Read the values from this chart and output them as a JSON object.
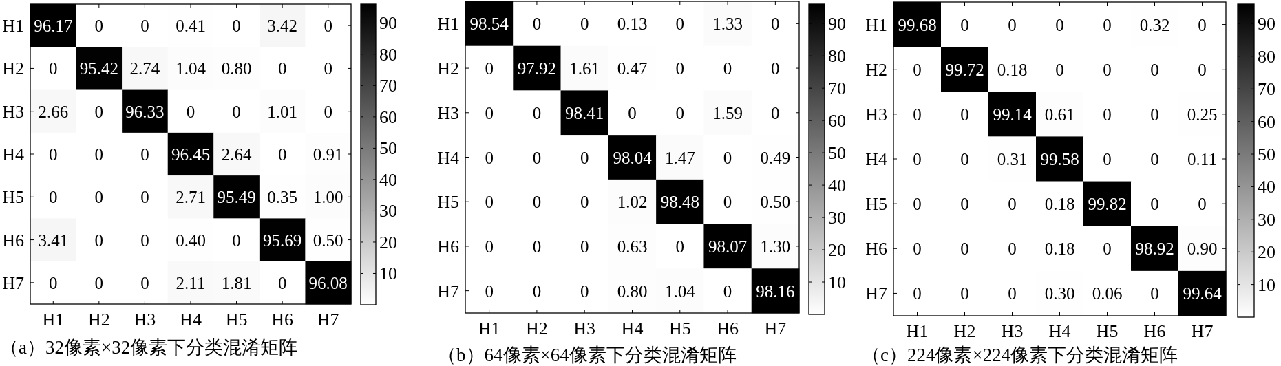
{
  "chart_data": [
    {
      "type": "heatmap",
      "title": "（a）32像素×32像素下分类混淆矩阵",
      "categories": [
        "H1",
        "H2",
        "H3",
        "H4",
        "H5",
        "H6",
        "H7"
      ],
      "y_categories": [
        "H1",
        "H2",
        "H3",
        "H4",
        "H5",
        "H6",
        "H7"
      ],
      "cells": [
        [
          96.17,
          0,
          0,
          0.41,
          0,
          3.42,
          0
        ],
        [
          0,
          95.42,
          2.74,
          1.04,
          0.8,
          0,
          0
        ],
        [
          2.66,
          0,
          96.33,
          0,
          0,
          1.01,
          0
        ],
        [
          0,
          0,
          0,
          96.45,
          2.64,
          0,
          0.91
        ],
        [
          0,
          0,
          0,
          2.71,
          95.49,
          0.35,
          1.0
        ],
        [
          3.41,
          0,
          0,
          0.4,
          0,
          95.69,
          0.5
        ],
        [
          0,
          0,
          0,
          2.11,
          1.81,
          0,
          96.08
        ]
      ],
      "cell_labels": [
        [
          "96.17",
          "0",
          "0",
          "0.41",
          "0",
          "3.42",
          "0"
        ],
        [
          "0",
          "95.42",
          "2.74",
          "1.04",
          "0.80",
          "0",
          "0"
        ],
        [
          "2.66",
          "0",
          "96.33",
          "0",
          "0",
          "1.01",
          "0"
        ],
        [
          "0",
          "0",
          "0",
          "96.45",
          "2.64",
          "0",
          "0.91"
        ],
        [
          "0",
          "0",
          "0",
          "2.71",
          "95.49",
          "0.35",
          "1.00"
        ],
        [
          "3.41",
          "0",
          "0",
          "0.40",
          "0",
          "95.69",
          "0.50"
        ],
        [
          "0",
          "0",
          "0",
          "2.11",
          "1.81",
          "0",
          "96.08"
        ]
      ],
      "clim": [
        0,
        96
      ],
      "cticks": [
        10,
        20,
        30,
        40,
        50,
        60,
        70,
        80,
        90
      ]
    },
    {
      "type": "heatmap",
      "title": "（b）64像素×64像素下分类混淆矩阵",
      "categories": [
        "H1",
        "H2",
        "H3",
        "H4",
        "H5",
        "H6",
        "H7"
      ],
      "y_categories": [
        "H1",
        "H2",
        "H3",
        "H4",
        "H5",
        "H6",
        "H7"
      ],
      "cells": [
        [
          98.54,
          0,
          0,
          0.13,
          0,
          1.33,
          0
        ],
        [
          0,
          97.92,
          1.61,
          0.47,
          0,
          0,
          0
        ],
        [
          0,
          0,
          98.41,
          0,
          0,
          1.59,
          0
        ],
        [
          0,
          0,
          0,
          98.04,
          1.47,
          0,
          0.49
        ],
        [
          0,
          0,
          0,
          1.02,
          98.48,
          0,
          0.5
        ],
        [
          0,
          0,
          0,
          0.63,
          0,
          98.07,
          1.3
        ],
        [
          0,
          0,
          0,
          0.8,
          1.04,
          0,
          98.16
        ]
      ],
      "cell_labels": [
        [
          "98.54",
          "0",
          "0",
          "0.13",
          "0",
          "1.33",
          "0"
        ],
        [
          "0",
          "97.92",
          "1.61",
          "0.47",
          "0",
          "0",
          "0"
        ],
        [
          "0",
          "0",
          "98.41",
          "0",
          "0",
          "1.59",
          "0"
        ],
        [
          "0",
          "0",
          "0",
          "98.04",
          "1.47",
          "0",
          "0.49"
        ],
        [
          "0",
          "0",
          "0",
          "1.02",
          "98.48",
          "0",
          "0.50"
        ],
        [
          "0",
          "0",
          "0",
          "0.63",
          "0",
          "98.07",
          "1.30"
        ],
        [
          "0",
          "0",
          "0",
          "0.80",
          "1.04",
          "0",
          "98.16"
        ]
      ],
      "clim": [
        0,
        96
      ],
      "cticks": [
        10,
        20,
        30,
        40,
        50,
        60,
        70,
        80,
        90
      ]
    },
    {
      "type": "heatmap",
      "title": "（c）224像素×224像素下分类混淆矩阵",
      "categories": [
        "H1",
        "H2",
        "H3",
        "H4",
        "H5",
        "H6",
        "H7"
      ],
      "y_categories": [
        "H1",
        "H2",
        "H3",
        "H4",
        "H5",
        "H6",
        "H7"
      ],
      "cells": [
        [
          99.68,
          0,
          0,
          0,
          0,
          0.32,
          0
        ],
        [
          0,
          99.72,
          0.18,
          0,
          0,
          0,
          0
        ],
        [
          0,
          0,
          99.14,
          0.61,
          0,
          0,
          0.25
        ],
        [
          0,
          0,
          0.31,
          99.58,
          0,
          0,
          0.11
        ],
        [
          0,
          0,
          0,
          0.18,
          99.82,
          0,
          0
        ],
        [
          0,
          0,
          0,
          0.18,
          0,
          98.92,
          0.9
        ],
        [
          0,
          0,
          0,
          0.3,
          0.06,
          0,
          99.64
        ]
      ],
      "cell_labels": [
        [
          "99.68",
          "0",
          "0",
          "0",
          "0",
          "0.32",
          "0"
        ],
        [
          "0",
          "99.72",
          "0.18",
          "0",
          "0",
          "0",
          "0"
        ],
        [
          "0",
          "0",
          "99.14",
          "0.61",
          "0",
          "0",
          "0.25"
        ],
        [
          "0",
          "0",
          "0.31",
          "99.58",
          "0",
          "0",
          "0.11"
        ],
        [
          "0",
          "0",
          "0",
          "0.18",
          "99.82",
          "0",
          "0"
        ],
        [
          "0",
          "0",
          "0",
          "0.18",
          "0",
          "98.92",
          "0.90"
        ],
        [
          "0",
          "0",
          "0",
          "0.30",
          "0.06",
          "0",
          "99.64"
        ]
      ],
      "clim": [
        0,
        96
      ],
      "cticks": [
        10,
        20,
        30,
        40,
        50,
        60,
        70,
        80,
        90
      ]
    }
  ]
}
